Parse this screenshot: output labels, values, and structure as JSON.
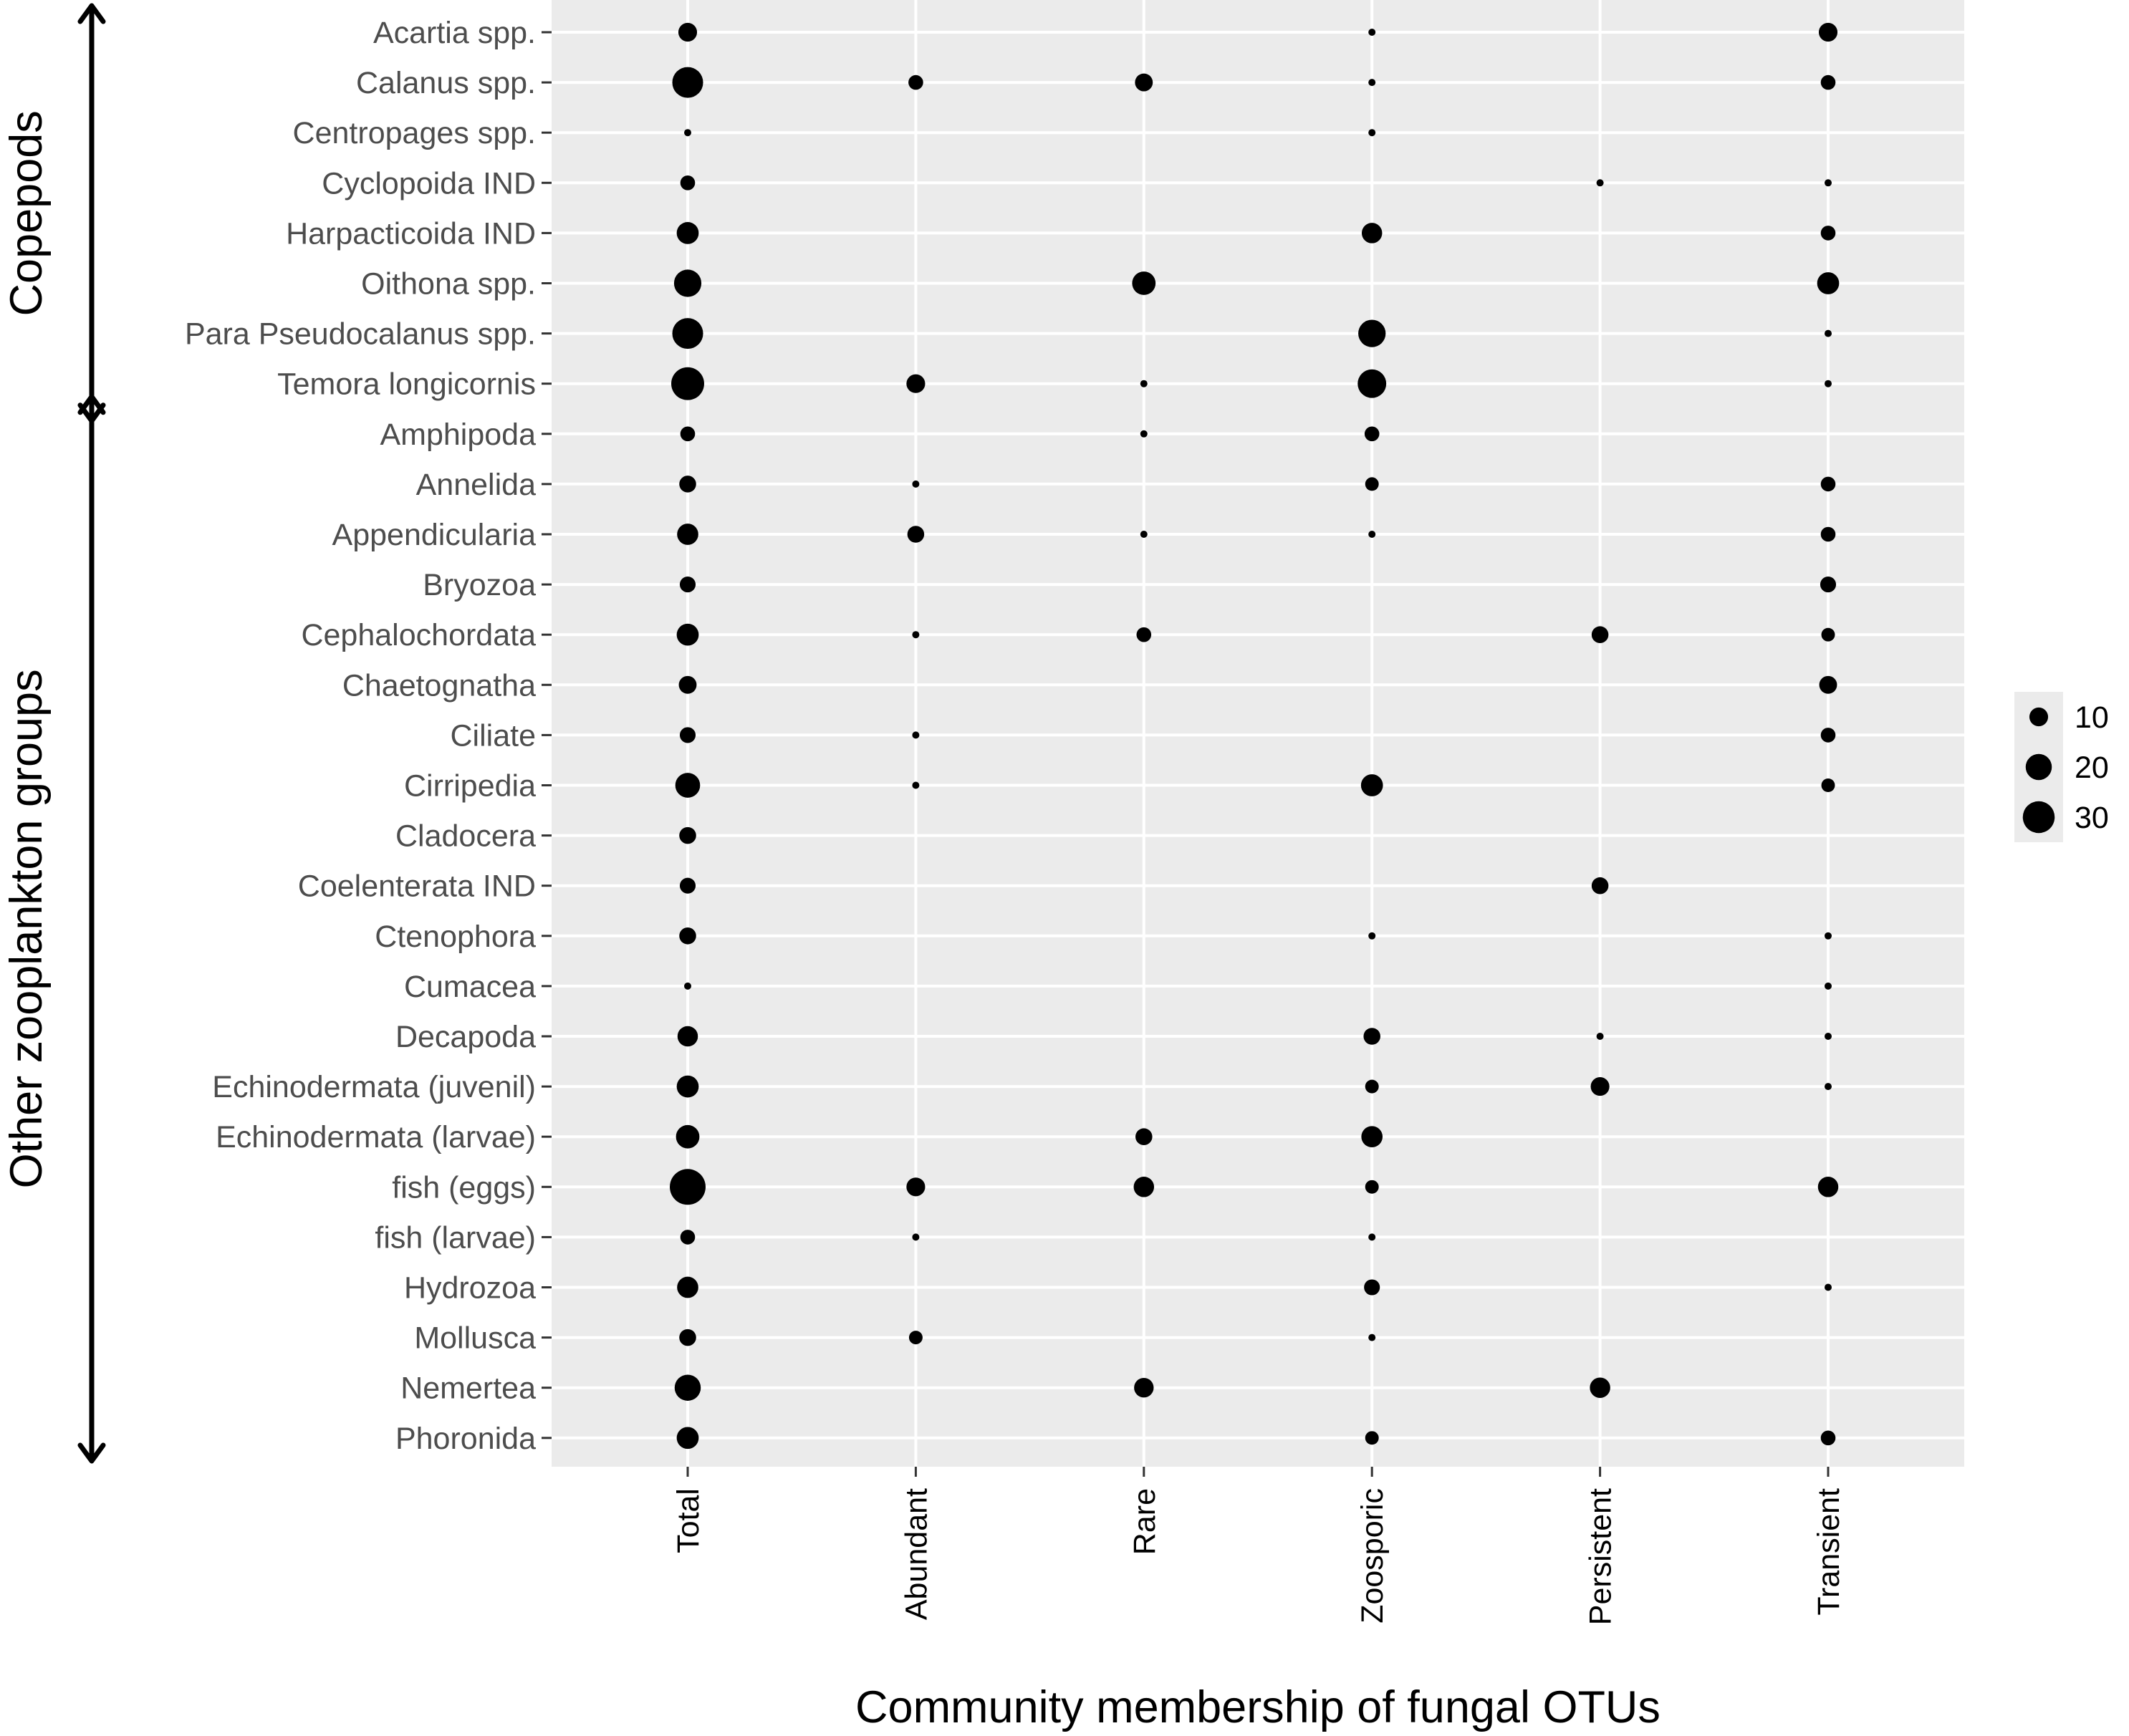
{
  "chart_data": {
    "type": "scatter",
    "title": "",
    "xlabel": "Community membership of fungal OTUs",
    "ylabel": "",
    "categories": [
      "Total",
      "Abundant",
      "Rare",
      "Zoosporic",
      "Persistent",
      "Transient"
    ],
    "taxa": [
      "Acartia spp.",
      "Calanus spp.",
      "Centropages spp.",
      "Cyclopoida IND",
      "Harpacticoida IND",
      "Oithona spp.",
      "Para Pseudocalanus spp.",
      "Temora longicornis",
      "Amphipoda",
      "Annelida",
      "Appendicularia",
      "Bryozoa",
      "Cephalochordata",
      "Chaetognatha",
      "Ciliate",
      "Cirripedia",
      "Cladocera",
      "Coelenterata IND",
      "Ctenophora",
      "Cumacea",
      "Decapoda",
      "Echinodermata (juvenil)",
      "Echinodermata (larvae)",
      "fish (eggs)",
      "fish (larvae)",
      "Hydrozoa",
      "Mollusca",
      "Nemertea",
      "Phoronida"
    ],
    "values": [
      [
        10,
        null,
        null,
        1,
        null,
        10
      ],
      [
        28,
        6,
        9,
        1,
        null,
        6
      ],
      [
        1,
        null,
        null,
        1,
        null,
        null
      ],
      [
        6,
        null,
        null,
        null,
        1,
        1
      ],
      [
        14,
        null,
        null,
        12,
        null,
        6
      ],
      [
        22,
        null,
        16,
        null,
        null,
        14
      ],
      [
        28,
        null,
        null,
        22,
        null,
        1
      ],
      [
        32,
        10,
        1,
        24,
        null,
        1
      ],
      [
        6,
        null,
        1,
        6,
        null,
        null
      ],
      [
        8,
        1,
        null,
        5,
        null,
        6
      ],
      [
        13,
        8,
        1,
        1,
        null,
        6
      ],
      [
        7,
        null,
        null,
        null,
        null,
        7
      ],
      [
        14,
        1,
        6,
        null,
        8,
        5
      ],
      [
        9,
        null,
        null,
        null,
        null,
        9
      ],
      [
        7,
        1,
        null,
        null,
        null,
        6
      ],
      [
        18,
        1,
        null,
        14,
        null,
        5
      ],
      [
        8,
        null,
        null,
        null,
        null,
        null
      ],
      [
        7,
        null,
        null,
        null,
        8,
        null
      ],
      [
        8,
        null,
        null,
        1,
        null,
        1
      ],
      [
        1,
        null,
        null,
        null,
        null,
        1
      ],
      [
        12,
        null,
        null,
        8,
        1,
        1
      ],
      [
        14,
        null,
        null,
        5,
        10,
        1
      ],
      [
        16,
        null,
        8,
        13,
        null,
        null
      ],
      [
        38,
        10,
        12,
        5,
        null,
        12
      ],
      [
        6,
        1,
        null,
        1,
        null,
        null
      ],
      [
        13,
        null,
        null,
        7,
        null,
        1
      ],
      [
        8,
        5,
        null,
        1,
        null,
        null
      ],
      [
        20,
        null,
        11,
        null,
        12,
        null
      ],
      [
        14,
        null,
        null,
        5,
        null,
        6
      ]
    ],
    "groups": [
      {
        "label": "Copepods",
        "first_taxon": 0,
        "last_taxon": 7
      },
      {
        "label": "Other zooplankton groups",
        "first_taxon": 8,
        "last_taxon": 28
      }
    ],
    "legend": {
      "position": "right",
      "entries": [
        {
          "label": "10",
          "value": 10
        },
        {
          "label": "20",
          "value": 20
        },
        {
          "label": "30",
          "value": 30
        }
      ]
    },
    "size_range": [
      1,
      38
    ],
    "grid": true,
    "colors": {
      "panel_background": "#ebebeb",
      "grid": "#ffffff",
      "point": "#000000",
      "tick_text": "#4d4d4d",
      "axis_ticks": "#333333"
    }
  }
}
